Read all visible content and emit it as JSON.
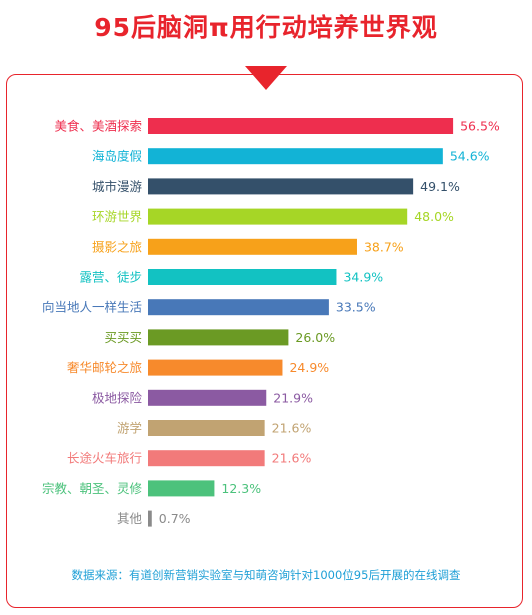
{
  "chart_data": {
    "type": "bar",
    "title": "95后脑洞π用行动培养世界观",
    "source": "数据来源：有道创新营销实验室与知萌咨询针对1000位95后开展的在线调查",
    "unit": "%",
    "xlim": [
      0,
      60
    ],
    "grid": false,
    "categories": [
      "美食、美酒探索",
      "海岛度假",
      "城市漫游",
      "环游世界",
      "摄影之旅",
      "露营、徒步",
      "向当地人一样生活",
      "买买买",
      "奢华邮轮之旅",
      "极地探险",
      "游学",
      "长途火车旅行",
      "宗教、朝圣、灵修",
      "其他"
    ],
    "values": [
      56.5,
      54.6,
      49.1,
      48.0,
      38.7,
      34.9,
      33.5,
      26.0,
      24.9,
      21.9,
      21.6,
      21.6,
      12.3,
      0.7
    ],
    "value_labels": [
      "56.5%",
      "54.6%",
      "49.1%",
      "48.0%",
      "38.7%",
      "34.9%",
      "33.5%",
      "26.0%",
      "24.9%",
      "21.9%",
      "21.6%",
      "21.6%",
      "12.3%",
      "0.7%"
    ],
    "colors": [
      "#ee2e4e",
      "#12b3d6",
      "#34506a",
      "#a6d626",
      "#f7a11a",
      "#12c2c2",
      "#4878b8",
      "#6b9a24",
      "#f78a2c",
      "#8b5aa2",
      "#c1a372",
      "#f27a7a",
      "#4cc27c",
      "#8a8a8a"
    ]
  }
}
